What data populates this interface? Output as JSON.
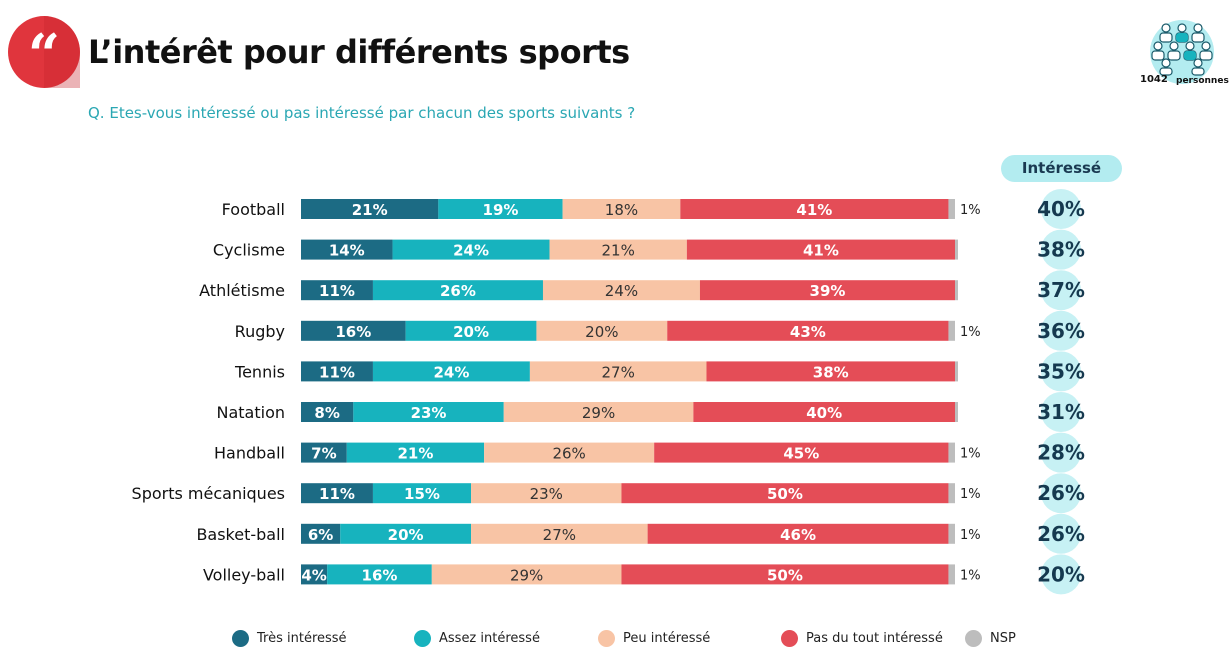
{
  "header": {
    "title": "L’intérêt pour différents sports",
    "question": "Q. Etes-vous intéressé ou pas intéressé par chacun des sports suivants ?",
    "quote_icon": "quote-icon",
    "sample": {
      "icon": "people-icon",
      "n": "1042",
      "unit": "personnes"
    }
  },
  "interesse_header": "Intéressé",
  "legend": [
    {
      "label": "Très intéressé",
      "color": "#1c6b84"
    },
    {
      "label": "Assez intéressé",
      "color": "#17b3be"
    },
    {
      "label": "Peu intéressé",
      "color": "#f8c4a5"
    },
    {
      "label": "Pas du tout intéressé",
      "color": "#e44d57"
    },
    {
      "label": "NSP",
      "color": "#bdbdbd"
    }
  ],
  "chart_data": {
    "type": "bar",
    "orientation": "horizontal",
    "stacked": true,
    "categories": [
      "Football",
      "Cyclisme",
      "Athlétisme",
      "Rugby",
      "Tennis",
      "Natation",
      "Handball",
      "Sports mécaniques",
      "Basket-ball",
      "Volley-ball"
    ],
    "series": [
      {
        "name": "Très intéressé",
        "color": "#1c6b84",
        "values": [
          21,
          14,
          11,
          16,
          11,
          8,
          7,
          11,
          6,
          4
        ]
      },
      {
        "name": "Assez intéressé",
        "color": "#17b3be",
        "values": [
          19,
          24,
          26,
          20,
          24,
          23,
          21,
          15,
          20,
          16
        ]
      },
      {
        "name": "Peu intéressé",
        "color": "#f8c4a5",
        "values": [
          18,
          21,
          24,
          20,
          27,
          29,
          26,
          23,
          27,
          29
        ]
      },
      {
        "name": "Pas du tout intéressé",
        "color": "#e44d57",
        "values": [
          41,
          41,
          39,
          43,
          38,
          40,
          45,
          50,
          46,
          50
        ]
      },
      {
        "name": "NSP",
        "color": "#bdbdbd",
        "values": [
          1,
          0,
          0,
          1,
          0,
          0,
          1,
          1,
          1,
          1
        ]
      }
    ],
    "nsp_labels": [
      "1%",
      "",
      "",
      "1%",
      "",
      "",
      "1%",
      "1%",
      "1%",
      "1%"
    ],
    "interesse": [
      40,
      38,
      37,
      36,
      35,
      31,
      28,
      26,
      26,
      20
    ],
    "unit": "%",
    "legend_position": "bottom"
  }
}
